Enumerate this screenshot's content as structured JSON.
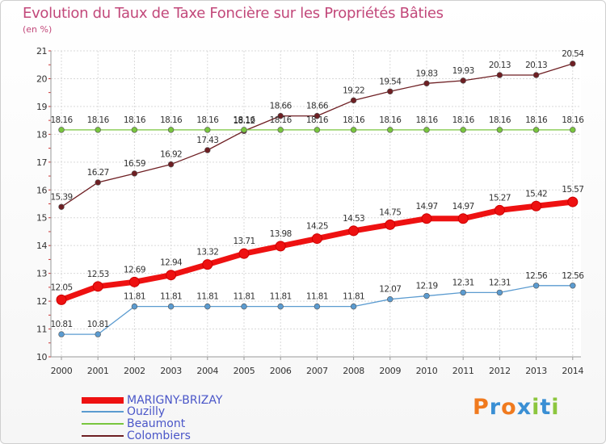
{
  "title": "Evolution du Taux de Taxe Foncière sur les Propriétés Bâties",
  "subtitle": "(en %)",
  "logo": {
    "letters": [
      "P",
      "r",
      "o",
      "x",
      "i",
      "t",
      "i"
    ],
    "colors": [
      "#f07a1e",
      "#3a8fd4",
      "#f07a1e",
      "#3a8fd4",
      "#8cc63e",
      "#3a8fd4",
      "#8cc63e"
    ]
  },
  "chart_data": {
    "type": "line",
    "title": "Evolution du Taux de Taxe Foncière sur les Propriétés Bâties",
    "ylabel": "(en %)",
    "xlabel": "",
    "ylim": [
      10,
      21
    ],
    "yticks": [
      "10",
      "11",
      "12",
      "13",
      "14",
      "15",
      "16",
      "17",
      "18",
      "19",
      "20",
      "21"
    ],
    "grid": true,
    "legend": "bottom-left",
    "x": [
      "2000",
      "2001",
      "2002",
      "2003",
      "2004",
      "2005",
      "2006",
      "2007",
      "2008",
      "2009",
      "2010",
      "2011",
      "2012",
      "2013",
      "2014"
    ],
    "series": [
      {
        "name": "Colombiers",
        "color": "#6e1f23",
        "values": [
          15.39,
          16.27,
          16.59,
          16.92,
          17.43,
          18.12,
          18.66,
          18.66,
          19.22,
          19.54,
          19.83,
          19.93,
          20.13,
          20.13,
          20.54
        ],
        "labels": [
          "15.39",
          "16.27",
          "16.59",
          "16.92",
          "17.43",
          "18.12",
          "18.66",
          "18.66",
          "19.22",
          "19.54",
          "19.83",
          "19.93",
          "20.13",
          "20.13",
          "20.54"
        ]
      },
      {
        "name": "Beaumont",
        "color": "#79c63e",
        "values": [
          18.16,
          18.16,
          18.16,
          18.16,
          18.16,
          18.16,
          18.16,
          18.16,
          18.16,
          18.16,
          18.16,
          18.16,
          18.16,
          18.16,
          18.16
        ],
        "labels": [
          "18.16",
          "18.16",
          "18.16",
          "18.16",
          "18.16",
          "18.16",
          "18.16",
          "18.16",
          "18.16",
          "18.16",
          "18.16",
          "18.16",
          "18.16",
          "18.16",
          "18.16"
        ]
      },
      {
        "name": "Ouzilly",
        "color": "#5b9bd0",
        "values": [
          10.81,
          10.81,
          11.81,
          11.81,
          11.81,
          11.81,
          11.81,
          11.81,
          11.81,
          12.07,
          12.19,
          12.31,
          12.31,
          12.56,
          12.56
        ],
        "labels": [
          "10.81",
          "10.81",
          "11.81",
          "11.81",
          "11.81",
          "11.81",
          "11.81",
          "11.81",
          "11.81",
          "12.07",
          "12.19",
          "12.31",
          "12.31",
          "12.56",
          "12.56"
        ]
      },
      {
        "name": "MARIGNY-BRIZAY",
        "color": "#ee1111",
        "values": [
          12.05,
          12.53,
          12.69,
          12.94,
          13.32,
          13.71,
          13.98,
          14.25,
          14.53,
          14.75,
          14.97,
          14.97,
          15.27,
          15.42,
          15.57
        ],
        "labels": [
          "12.05",
          "12.53",
          "12.69",
          "12.94",
          "13.32",
          "13.71",
          "13.98",
          "14.25",
          "14.53",
          "14.75",
          "14.97",
          "14.97",
          "15.27",
          "15.42",
          "15.57"
        ]
      }
    ],
    "legend_order": [
      "MARIGNY-BRIZAY",
      "Ouzilly",
      "Beaumont",
      "Colombiers"
    ]
  }
}
